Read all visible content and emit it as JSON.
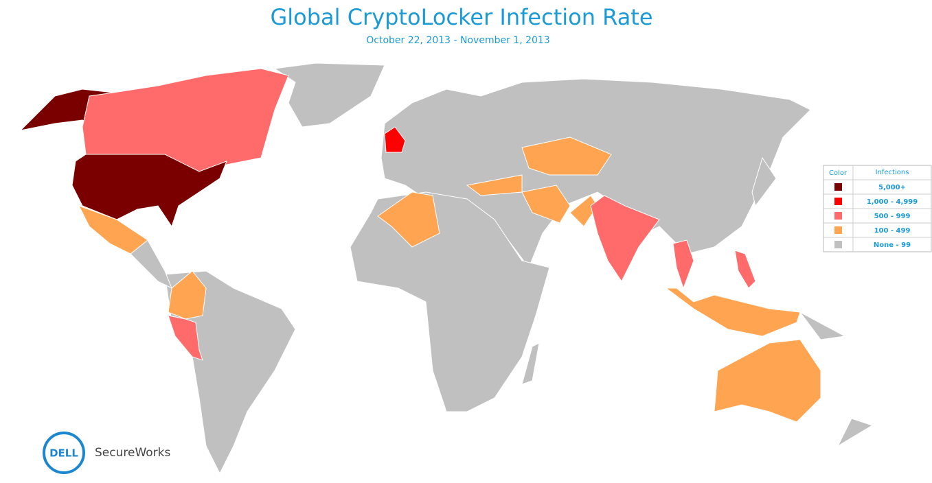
{
  "title": "Global CryptoLocker Infection Rate",
  "subtitle": "October 22, 2013 - November 1, 2013",
  "legend": {
    "headers": [
      "Color",
      "Infections"
    ],
    "items": [
      {
        "label": "5,000+",
        "color": "#7a0000"
      },
      {
        "label": "1,000 - 4,999",
        "color": "#ff0000"
      },
      {
        "label": "500 - 999",
        "color": "#ff6b6b"
      },
      {
        "label": "100 - 499",
        "color": "#ffa552"
      },
      {
        "label": "None - 99",
        "color": "#c0c0c0"
      }
    ]
  },
  "logo": {
    "mark": "DELL",
    "text": "SecureWorks"
  }
}
